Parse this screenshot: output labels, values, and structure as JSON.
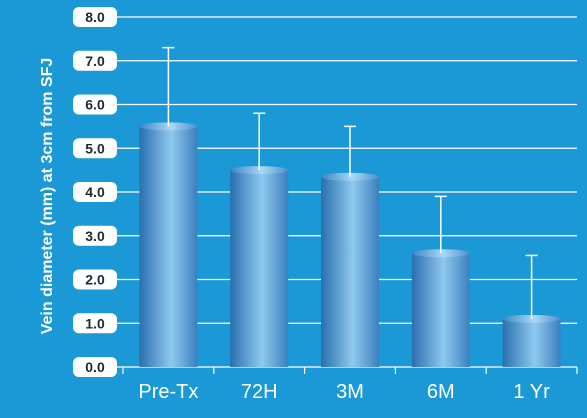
{
  "chart_data": {
    "type": "bar",
    "title": "",
    "xlabel": "",
    "ylabel": "Vein diameter (mm) at 3cm from SFJ",
    "categories": [
      "Pre-Tx",
      "72H",
      "3M",
      "6M",
      "1 Yr"
    ],
    "values": [
      5.5,
      4.5,
      4.35,
      2.6,
      1.1
    ],
    "error_upper": [
      1.8,
      1.3,
      1.15,
      1.3,
      1.45
    ],
    "ylim": [
      0,
      8
    ],
    "yticks": [
      "0.0",
      "1.0",
      "2.0",
      "3.0",
      "4.0",
      "5.0",
      "6.0",
      "7.0",
      "8.0"
    ],
    "grid": true,
    "legend": "none"
  },
  "colors": {
    "background": "#1a99d6",
    "bar_edge": "#2a6fae",
    "bar_center": "#8ec9ee",
    "gridline": "#ffffff",
    "tick_box": "#ffffff",
    "error_bar": "#ffffff"
  }
}
